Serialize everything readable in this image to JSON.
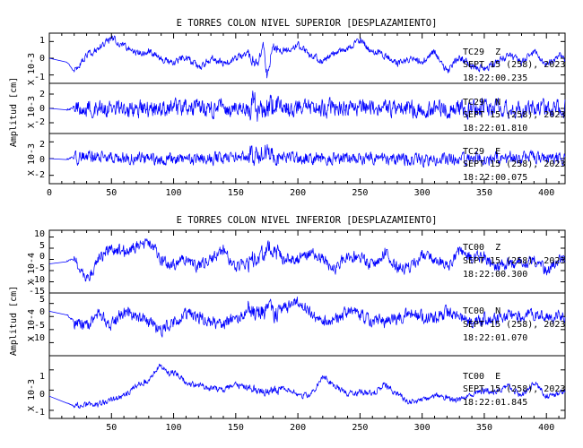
{
  "chart_data": [
    {
      "type": "line",
      "title": "E TORRES COLON NIVEL SUPERIOR [DESPLAZAMIENTO]",
      "ylabel": "Amplitud [cm]",
      "xlim": [
        0,
        415
      ],
      "xticks": [
        "0",
        "50",
        "100",
        "150",
        "200",
        "250",
        "300",
        "350",
        "400"
      ],
      "grid": false,
      "series": [
        {
          "id": "s1",
          "station": "TC29",
          "component": "Z",
          "date": "SEPT 15 (258), 2023",
          "time": "18:22:00.235",
          "scale": "X 10-3",
          "ylim": [
            -1.5,
            1.5
          ],
          "yticks": [
            "1",
            "0",
            "-1"
          ],
          "points": [
            [
              0,
              0.0
            ],
            [
              14,
              -0.2
            ],
            [
              20,
              -0.8
            ],
            [
              30,
              0.2
            ],
            [
              40,
              0.6
            ],
            [
              50,
              1.2
            ],
            [
              60,
              0.8
            ],
            [
              70,
              0.3
            ],
            [
              80,
              0.4
            ],
            [
              90,
              0.0
            ],
            [
              100,
              -0.3
            ],
            [
              110,
              0.1
            ],
            [
              120,
              -0.6
            ],
            [
              130,
              0.0
            ],
            [
              140,
              -0.3
            ],
            [
              150,
              0.0
            ],
            [
              160,
              0.4
            ],
            [
              168,
              -0.6
            ],
            [
              172,
              1.3
            ],
            [
              175,
              -1.0
            ],
            [
              180,
              0.6
            ],
            [
              190,
              0.4
            ],
            [
              200,
              0.8
            ],
            [
              210,
              0.2
            ],
            [
              220,
              -0.2
            ],
            [
              230,
              0.4
            ],
            [
              240,
              0.6
            ],
            [
              250,
              1.1
            ],
            [
              260,
              0.4
            ],
            [
              270,
              0.2
            ],
            [
              280,
              -0.3
            ],
            [
              290,
              0.0
            ],
            [
              300,
              -0.2
            ],
            [
              310,
              0.4
            ],
            [
              320,
              -0.8
            ],
            [
              330,
              0.1
            ],
            [
              340,
              -0.5
            ],
            [
              350,
              -0.6
            ],
            [
              360,
              -0.3
            ],
            [
              370,
              0.2
            ],
            [
              380,
              -0.2
            ],
            [
              390,
              0.4
            ],
            [
              400,
              -0.4
            ],
            [
              410,
              0.2
            ],
            [
              415,
              0.0
            ]
          ],
          "noise": 0.35
        },
        {
          "id": "s2",
          "station": "TC29",
          "component": "N",
          "date": "SEPT 15 (258), 2023",
          "time": "18:22:01.810",
          "scale": "X 10-3",
          "ylim": [
            -3.5,
            3.5
          ],
          "yticks": [
            "2",
            "0",
            "-2"
          ],
          "points": [
            [
              0,
              0.0
            ],
            [
              14,
              0.0
            ],
            [
              30,
              0.2
            ],
            [
              60,
              -0.2
            ],
            [
              100,
              0.1
            ],
            [
              150,
              0.0
            ],
            [
              172,
              0.3
            ],
            [
              200,
              0.0
            ],
            [
              250,
              0.1
            ],
            [
              300,
              -0.1
            ],
            [
              350,
              0.0
            ],
            [
              400,
              0.1
            ],
            [
              415,
              0.0
            ]
          ],
          "noise": 2.0
        },
        {
          "id": "s3",
          "station": "TC29",
          "component": "E",
          "date": "SEPT 15 (258), 2023",
          "time": "18:22:00.075",
          "scale": "X 10-3",
          "ylim": [
            -3,
            3
          ],
          "yticks": [
            "2",
            "0",
            "-2"
          ],
          "points": [
            [
              0,
              0.0
            ],
            [
              14,
              0.0
            ],
            [
              30,
              0.2
            ],
            [
              60,
              0.1
            ],
            [
              100,
              -0.1
            ],
            [
              150,
              0.2
            ],
            [
              172,
              0.5
            ],
            [
              200,
              0.0
            ],
            [
              250,
              0.1
            ],
            [
              300,
              -0.2
            ],
            [
              350,
              0.0
            ],
            [
              400,
              0.2
            ],
            [
              415,
              0.0
            ]
          ],
          "noise": 1.2
        }
      ]
    },
    {
      "type": "line",
      "title": "E TORRES COLON NIVEL INFERIOR [DESPLAZAMIENTO]",
      "ylabel": "Amplitud [cm]",
      "xlim": [
        0,
        415
      ],
      "xticks": [
        "50",
        "100",
        "150",
        "200",
        "250",
        "300",
        "350",
        "400"
      ],
      "grid": false,
      "series": [
        {
          "id": "s4",
          "station": "TC00",
          "component": "Z",
          "date": "SEPT 15 (258), 2023",
          "time": "18:22:00.300",
          "scale": "X 10-4",
          "ylim": [
            -15,
            13
          ],
          "yticks": [
            "10",
            "5",
            "0",
            "-5",
            "-10",
            "-15"
          ],
          "points": [
            [
              0,
              -2
            ],
            [
              10,
              -1
            ],
            [
              20,
              0
            ],
            [
              30,
              -10
            ],
            [
              40,
              0
            ],
            [
              50,
              5
            ],
            [
              60,
              3
            ],
            [
              70,
              6
            ],
            [
              80,
              8
            ],
            [
              90,
              0
            ],
            [
              100,
              -3
            ],
            [
              110,
              0
            ],
            [
              120,
              -3
            ],
            [
              130,
              0
            ],
            [
              140,
              4
            ],
            [
              150,
              -4
            ],
            [
              160,
              -1
            ],
            [
              170,
              2
            ],
            [
              180,
              5
            ],
            [
              190,
              0
            ],
            [
              200,
              1
            ],
            [
              210,
              3
            ],
            [
              220,
              0
            ],
            [
              230,
              -4
            ],
            [
              240,
              2
            ],
            [
              250,
              1
            ],
            [
              260,
              -3
            ],
            [
              270,
              3
            ],
            [
              280,
              -4
            ],
            [
              290,
              -3
            ],
            [
              300,
              2
            ],
            [
              310,
              0
            ],
            [
              320,
              -3
            ],
            [
              330,
              4
            ],
            [
              340,
              0
            ],
            [
              350,
              1
            ],
            [
              360,
              -3
            ],
            [
              370,
              -2
            ],
            [
              380,
              -1
            ],
            [
              390,
              0
            ],
            [
              400,
              -5
            ],
            [
              410,
              0
            ],
            [
              415,
              0
            ]
          ],
          "noise": 4.5
        },
        {
          "id": "s5",
          "station": "TC00",
          "component": "N",
          "date": "SEPT 15 (258), 2023",
          "time": "18:22:01.070",
          "scale": "X 10-4",
          "ylim": [
            -15,
            9
          ],
          "yticks": [
            "5",
            "0",
            "-5",
            "-10"
          ],
          "points": [
            [
              0,
              2
            ],
            [
              10,
              3
            ],
            [
              20,
              -2
            ],
            [
              30,
              -3
            ],
            [
              40,
              1
            ],
            [
              50,
              -3
            ],
            [
              60,
              2
            ],
            [
              70,
              -1
            ],
            [
              80,
              -2
            ],
            [
              90,
              -5
            ],
            [
              100,
              -2
            ],
            [
              110,
              1
            ],
            [
              120,
              0
            ],
            [
              130,
              -2
            ],
            [
              140,
              -3
            ],
            [
              150,
              -1
            ],
            [
              160,
              3
            ],
            [
              170,
              2
            ],
            [
              180,
              2
            ],
            [
              190,
              3
            ],
            [
              200,
              5
            ],
            [
              210,
              2
            ],
            [
              220,
              -2
            ],
            [
              230,
              -1
            ],
            [
              240,
              2
            ],
            [
              250,
              1
            ],
            [
              260,
              -2
            ],
            [
              270,
              -2
            ],
            [
              280,
              -1
            ],
            [
              290,
              1
            ],
            [
              300,
              0
            ],
            [
              310,
              -1
            ],
            [
              320,
              2
            ],
            [
              330,
              0
            ],
            [
              340,
              -3
            ],
            [
              350,
              -1
            ],
            [
              360,
              -1
            ],
            [
              370,
              0
            ],
            [
              380,
              0
            ],
            [
              390,
              1
            ],
            [
              400,
              0
            ],
            [
              410,
              0
            ],
            [
              415,
              0
            ]
          ],
          "noise": 4.0
        },
        {
          "id": "s6",
          "station": "TC00",
          "component": "E",
          "date": "SEPT 15 (258), 2023",
          "time": "18:22:01.845",
          "scale": "X 10-3",
          "ylim": [
            -1.4,
            1.7
          ],
          "yticks": [
            "1",
            "0",
            "-1"
          ],
          "points": [
            [
              0,
              -0.3
            ],
            [
              10,
              -0.5
            ],
            [
              20,
              -0.8
            ],
            [
              30,
              -0.7
            ],
            [
              40,
              -0.7
            ],
            [
              50,
              -0.5
            ],
            [
              60,
              -0.3
            ],
            [
              70,
              0.2
            ],
            [
              80,
              0.5
            ],
            [
              90,
              1.3
            ],
            [
              95,
              0.8
            ],
            [
              100,
              0.9
            ],
            [
              110,
              0.4
            ],
            [
              120,
              0.2
            ],
            [
              130,
              0.1
            ],
            [
              140,
              0.0
            ],
            [
              150,
              0.3
            ],
            [
              160,
              0.1
            ],
            [
              170,
              -0.1
            ],
            [
              180,
              0.0
            ],
            [
              190,
              0.1
            ],
            [
              200,
              -0.2
            ],
            [
              210,
              -0.3
            ],
            [
              220,
              0.7
            ],
            [
              230,
              0.2
            ],
            [
              240,
              -0.2
            ],
            [
              250,
              -0.1
            ],
            [
              260,
              -0.2
            ],
            [
              270,
              0.3
            ],
            [
              280,
              -0.2
            ],
            [
              290,
              -0.6
            ],
            [
              300,
              -0.5
            ],
            [
              310,
              -0.3
            ],
            [
              320,
              -0.4
            ],
            [
              330,
              -0.5
            ],
            [
              340,
              -0.2
            ],
            [
              350,
              0.0
            ],
            [
              360,
              -0.1
            ],
            [
              370,
              0.2
            ],
            [
              380,
              -0.3
            ],
            [
              390,
              0.4
            ],
            [
              400,
              -0.3
            ],
            [
              410,
              -0.2
            ],
            [
              415,
              -0.1
            ]
          ],
          "noise": 0.25
        }
      ]
    }
  ]
}
